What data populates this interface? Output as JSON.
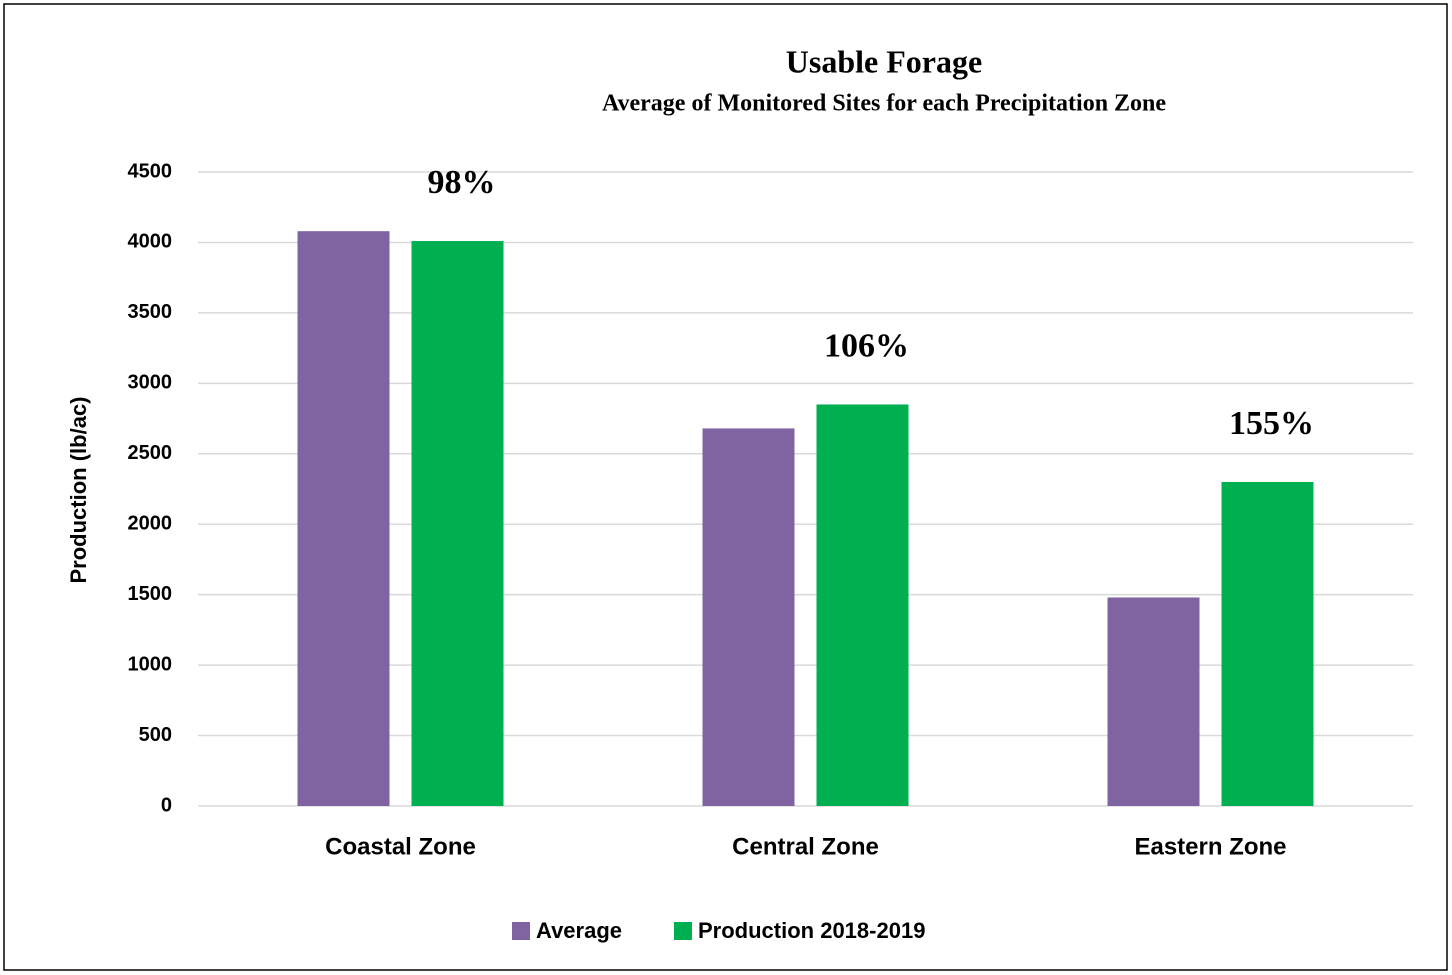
{
  "chart_data": {
    "type": "bar",
    "title": "Usable Forage",
    "subtitle": "Average of Monitored Sites for each Precipitation Zone",
    "y_label": "Production (lb/ac)",
    "categories": [
      "Coastal Zone",
      "Central Zone",
      "Eastern Zone"
    ],
    "series": [
      {
        "name": "Average",
        "color": "#8064a2",
        "values": [
          4080,
          2680,
          1480
        ]
      },
      {
        "name": "Production 2018-2019",
        "color": "#00b050",
        "values": [
          4010,
          2850,
          2300
        ]
      }
    ],
    "annotations": [
      "98%",
      "106%",
      "155%"
    ],
    "ylim": [
      0,
      4500
    ],
    "yticks": [
      0,
      500,
      1000,
      1500,
      2000,
      2500,
      3000,
      3500,
      4000,
      4500
    ],
    "grid": true,
    "legend": "bottom"
  }
}
